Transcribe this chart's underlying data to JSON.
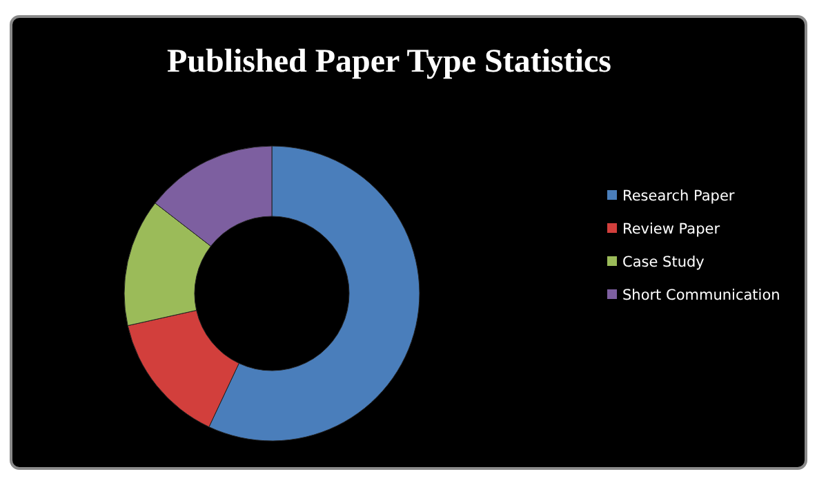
{
  "chart_data": {
    "type": "donut",
    "title": "Published Paper Type Statistics",
    "categories": [
      "Research Paper",
      "Review Paper",
      "Case Study",
      "Short Communication"
    ],
    "values": [
      57,
      14.5,
      14,
      14.5
    ],
    "colors": [
      "#4a7ebb",
      "#d23f3c",
      "#9bbb59",
      "#7d5fa0"
    ],
    "legend": "right"
  }
}
